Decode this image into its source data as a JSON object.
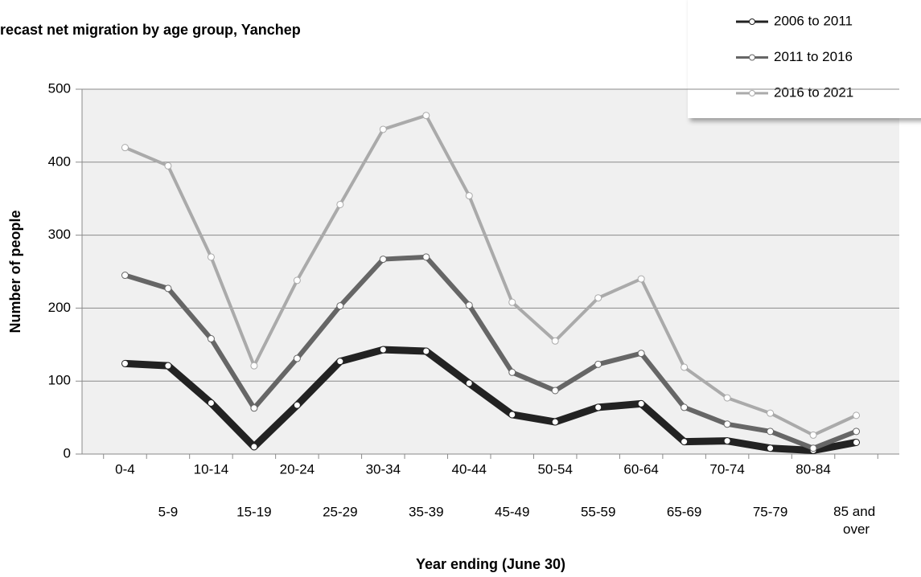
{
  "chart_data": {
    "type": "line",
    "title": "recast net migration by age group, Yanchep",
    "x_label": "Year ending (June 30)",
    "y_label": "Number of people",
    "categories": [
      "0-4",
      "5-9",
      "10-14",
      "15-19",
      "20-24",
      "25-29",
      "30-34",
      "35-39",
      "40-44",
      "45-49",
      "50-54",
      "55-59",
      "60-64",
      "65-69",
      "70-74",
      "75-79",
      "80-84",
      "85 and over"
    ],
    "series": [
      {
        "name": "2006 to 2011",
        "color": "#222222",
        "values": [
          124,
          121,
          70,
          10,
          67,
          127,
          143,
          141,
          97,
          54,
          44,
          64,
          69,
          17,
          18,
          8,
          5,
          16
        ]
      },
      {
        "name": "2011 to 2016",
        "color": "#666666",
        "values": [
          245,
          227,
          158,
          63,
          131,
          203,
          267,
          270,
          204,
          112,
          87,
          123,
          138,
          64,
          41,
          31,
          8,
          31
        ]
      },
      {
        "name": "2016 to 2021",
        "color": "#aaaaaa",
        "values": [
          420,
          395,
          270,
          121,
          238,
          342,
          445,
          464,
          354,
          208,
          155,
          214,
          240,
          119,
          77,
          56,
          26,
          53
        ]
      }
    ],
    "ylim": [
      0,
      500
    ],
    "yticks": [
      0,
      100,
      200,
      300,
      400,
      500
    ],
    "grid": true
  }
}
